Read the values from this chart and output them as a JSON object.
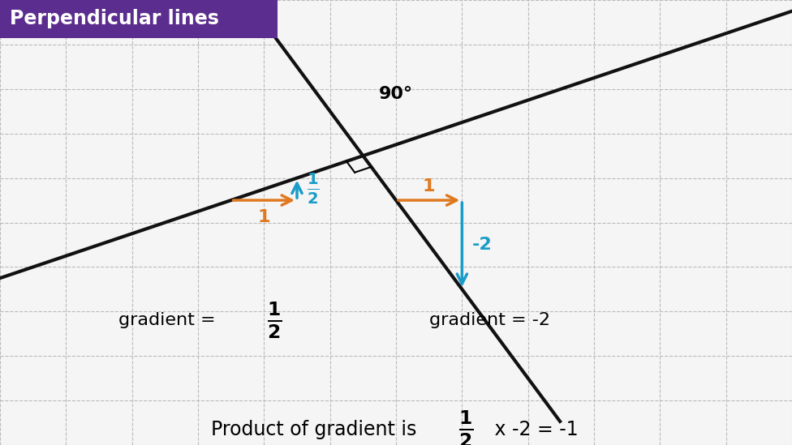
{
  "bg_color": "#f5f5f5",
  "grid_color": "#bbbbbb",
  "title_text": "Perpendicular lines",
  "title_bg": "#5b2d8e",
  "title_fg": "#ffffff",
  "line_color": "#111111",
  "arrow_orange": "#e07820",
  "arrow_blue": "#1a9cc8",
  "xlim": [
    0,
    12
  ],
  "ylim": [
    -1,
    9
  ],
  "angle_label": "90°",
  "ix": 5.5,
  "iy": 5.5,
  "grad1": 0.5,
  "grad2": -2.0
}
